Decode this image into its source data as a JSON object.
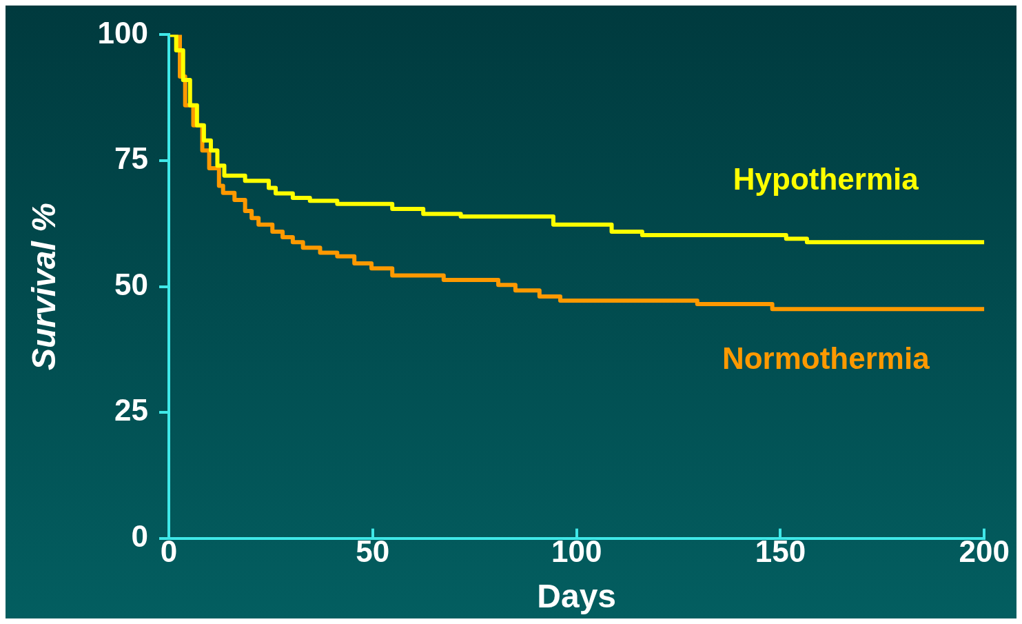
{
  "chart_data": {
    "type": "step",
    "xlabel": "Days",
    "ylabel": "Survival %",
    "xlim": [
      0,
      200
    ],
    "ylim": [
      0,
      100
    ],
    "xticks": [
      0,
      50,
      100,
      150,
      200
    ],
    "yticks": [
      0,
      25,
      50,
      75,
      100
    ],
    "grid": false,
    "legend": false,
    "series": [
      {
        "name": "Hypothermia",
        "color": "#ffff00",
        "x": [
          0.3,
          1.8,
          3.5,
          5.2,
          6.9,
          8.6,
          10.3,
          11.9,
          13.6,
          18.7,
          24.5,
          26.2,
          30.4,
          34.6,
          41.3,
          54.8,
          62.4,
          71.6,
          94.3,
          108.6,
          116.1,
          151.4,
          156.5,
          200
        ],
        "values": [
          100,
          96.9,
          91,
          86,
          82,
          79,
          77,
          74,
          72,
          71,
          69.6,
          68.5,
          67.6,
          67,
          66.4,
          65.4,
          64.4,
          63.9,
          62.3,
          60.9,
          60.2,
          59.5,
          58.8,
          58.8
        ]
      },
      {
        "name": "Normothermia",
        "color": "#ff9900",
        "x": [
          0.3,
          2.7,
          4,
          6,
          8.2,
          9.9,
          12.3,
          13.3,
          16.1,
          18.7,
          20.3,
          22,
          25.4,
          27.9,
          30.4,
          32.9,
          37.1,
          41.3,
          45.5,
          49.7,
          54.8,
          67.4,
          80.8,
          85,
          90.9,
          96,
          129.6,
          148,
          200
        ],
        "values": [
          100,
          91.7,
          86,
          82,
          77,
          73.5,
          70,
          68.6,
          67.2,
          65,
          63.6,
          62.3,
          60.9,
          59.8,
          58.8,
          57.7,
          56.7,
          56,
          54.6,
          53.6,
          52.2,
          51.3,
          50.3,
          49.2,
          48,
          47.2,
          46.5,
          45.5,
          45.5
        ]
      }
    ]
  }
}
